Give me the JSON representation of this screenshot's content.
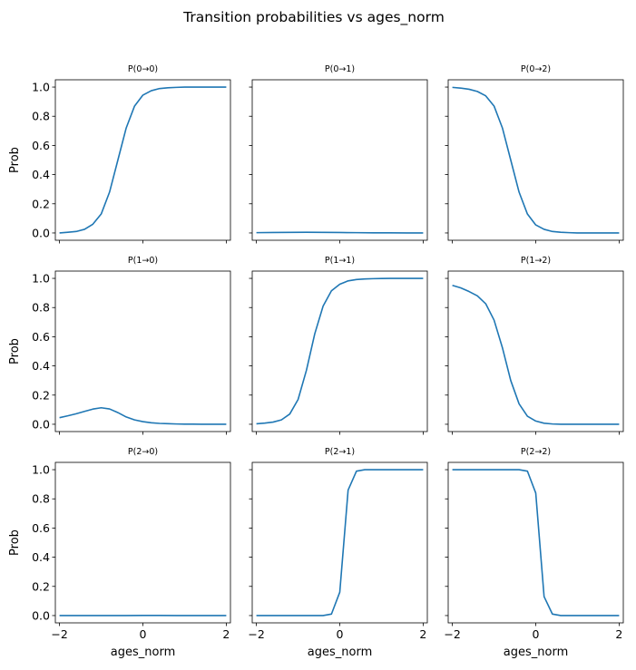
{
  "figure": {
    "title": "Transition probabilities vs ages_norm"
  },
  "shared": {
    "xlabel": "ages_norm",
    "ylabel": "Prob",
    "xlim": [
      -2.1,
      2.1
    ],
    "ylim": [
      -0.05,
      1.05
    ],
    "xticks": [
      -2,
      0,
      2
    ],
    "xtick_labels": [
      "−2",
      "0",
      "2"
    ],
    "yticks": [
      0.0,
      0.2,
      0.4,
      0.6,
      0.8,
      1.0
    ],
    "ytick_labels": [
      "0.0",
      "0.2",
      "0.4",
      "0.6",
      "0.8",
      "1.0"
    ],
    "line_color": "#1f77b4",
    "grid": false,
    "sharex": true,
    "sharey": true
  },
  "chart_data": [
    {
      "type": "line",
      "title": "P(0→0)",
      "row": 0,
      "col": 0,
      "x": [
        -2.0,
        -1.8,
        -1.6,
        -1.4,
        -1.2,
        -1.0,
        -0.8,
        -0.6,
        -0.4,
        -0.2,
        0.0,
        0.2,
        0.4,
        0.6,
        0.8,
        1.0,
        1.2,
        1.4,
        1.6,
        1.8,
        2.0
      ],
      "y": [
        0.0,
        0.005,
        0.01,
        0.025,
        0.06,
        0.13,
        0.28,
        0.5,
        0.72,
        0.87,
        0.945,
        0.975,
        0.99,
        0.995,
        0.998,
        1.0,
        1.0,
        1.0,
        1.0,
        1.0,
        1.0
      ]
    },
    {
      "type": "line",
      "title": "P(0→1)",
      "row": 0,
      "col": 1,
      "x": [
        -2.0,
        -1.6,
        -1.2,
        -0.8,
        -0.4,
        0.0,
        0.4,
        0.8,
        1.2,
        1.6,
        2.0
      ],
      "y": [
        0.002,
        0.003,
        0.004,
        0.005,
        0.004,
        0.003,
        0.002,
        0.001,
        0.001,
        0.0,
        0.0
      ]
    },
    {
      "type": "line",
      "title": "P(0→2)",
      "row": 0,
      "col": 2,
      "x": [
        -2.0,
        -1.8,
        -1.6,
        -1.4,
        -1.2,
        -1.0,
        -0.8,
        -0.6,
        -0.4,
        -0.2,
        0.0,
        0.2,
        0.4,
        0.6,
        0.8,
        1.0,
        1.2,
        1.4,
        1.6,
        1.8,
        2.0
      ],
      "y": [
        0.998,
        0.993,
        0.985,
        0.97,
        0.94,
        0.87,
        0.72,
        0.5,
        0.28,
        0.13,
        0.055,
        0.025,
        0.01,
        0.005,
        0.002,
        0.0,
        0.0,
        0.0,
        0.0,
        0.0,
        0.0
      ]
    },
    {
      "type": "line",
      "title": "P(1→0)",
      "row": 1,
      "col": 0,
      "x": [
        -2.0,
        -1.8,
        -1.6,
        -1.4,
        -1.2,
        -1.0,
        -0.8,
        -0.6,
        -0.4,
        -0.2,
        0.0,
        0.2,
        0.4,
        0.6,
        0.8,
        1.0,
        1.2,
        1.4,
        1.6,
        1.8,
        2.0
      ],
      "y": [
        0.045,
        0.058,
        0.072,
        0.088,
        0.104,
        0.113,
        0.105,
        0.08,
        0.05,
        0.03,
        0.018,
        0.01,
        0.006,
        0.004,
        0.002,
        0.001,
        0.001,
        0.0,
        0.0,
        0.0,
        0.0
      ]
    },
    {
      "type": "line",
      "title": "P(1→1)",
      "row": 1,
      "col": 1,
      "x": [
        -2.0,
        -1.8,
        -1.6,
        -1.4,
        -1.2,
        -1.0,
        -0.8,
        -0.6,
        -0.4,
        -0.2,
        0.0,
        0.2,
        0.4,
        0.6,
        0.8,
        1.0,
        1.2,
        1.4,
        1.6,
        1.8,
        2.0
      ],
      "y": [
        0.003,
        0.008,
        0.015,
        0.03,
        0.07,
        0.17,
        0.37,
        0.62,
        0.81,
        0.915,
        0.96,
        0.983,
        0.992,
        0.996,
        0.998,
        0.999,
        1.0,
        1.0,
        1.0,
        1.0,
        1.0
      ]
    },
    {
      "type": "line",
      "title": "P(1→2)",
      "row": 1,
      "col": 2,
      "x": [
        -2.0,
        -1.8,
        -1.6,
        -1.4,
        -1.2,
        -1.0,
        -0.8,
        -0.6,
        -0.4,
        -0.2,
        0.0,
        0.2,
        0.4,
        0.6,
        0.8,
        1.0,
        1.2,
        1.4,
        1.6,
        1.8,
        2.0
      ],
      "y": [
        0.952,
        0.935,
        0.91,
        0.88,
        0.826,
        0.714,
        0.525,
        0.3,
        0.14,
        0.055,
        0.022,
        0.007,
        0.002,
        0.0,
        0.0,
        0.0,
        0.0,
        0.0,
        0.0,
        0.0,
        0.0
      ]
    },
    {
      "type": "line",
      "title": "P(2→0)",
      "row": 2,
      "col": 0,
      "x": [
        -2.0,
        -1.6,
        -1.2,
        -0.8,
        -0.4,
        0.0,
        0.4,
        0.8,
        1.2,
        1.6,
        2.0
      ],
      "y": [
        0.0,
        0.0,
        0.0,
        0.0,
        0.0,
        0.001,
        0.001,
        0.0,
        0.0,
        0.0,
        0.0
      ]
    },
    {
      "type": "line",
      "title": "P(2→1)",
      "row": 2,
      "col": 1,
      "x": [
        -2.0,
        -1.6,
        -1.2,
        -0.8,
        -0.4,
        -0.2,
        0.0,
        0.2,
        0.4,
        0.6,
        0.8,
        1.2,
        1.6,
        2.0
      ],
      "y": [
        0.0,
        0.0,
        0.0,
        0.0,
        0.0,
        0.01,
        0.16,
        0.86,
        0.99,
        1.0,
        1.0,
        1.0,
        1.0,
        1.0
      ]
    },
    {
      "type": "line",
      "title": "P(2→2)",
      "row": 2,
      "col": 2,
      "x": [
        -2.0,
        -1.6,
        -1.2,
        -0.8,
        -0.4,
        -0.2,
        0.0,
        0.2,
        0.4,
        0.6,
        0.8,
        1.2,
        1.6,
        2.0
      ],
      "y": [
        1.0,
        1.0,
        1.0,
        1.0,
        1.0,
        0.99,
        0.84,
        0.13,
        0.01,
        0.0,
        0.0,
        0.0,
        0.0,
        0.0
      ]
    }
  ]
}
